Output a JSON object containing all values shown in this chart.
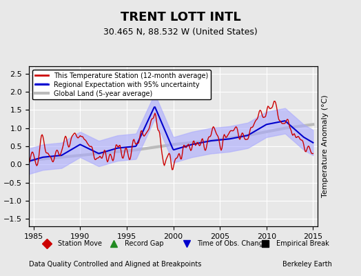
{
  "title": "TRENT LOTT INTL",
  "subtitle": "30.465 N, 88.532 W (United States)",
  "ylabel": "Temperature Anomaly (°C)",
  "xlabel_left": "Data Quality Controlled and Aligned at Breakpoints",
  "xlabel_right": "Berkeley Earth",
  "xlim": [
    1984.5,
    2015.5
  ],
  "ylim": [
    -1.7,
    2.7
  ],
  "yticks": [
    -1.5,
    -1.0,
    -0.5,
    0.0,
    0.5,
    1.0,
    1.5,
    2.0,
    2.5
  ],
  "xticks": [
    1985,
    1990,
    1995,
    2000,
    2005,
    2010,
    2015
  ],
  "bg_color": "#e8e8e8",
  "plot_bg_color": "#e8e8e8",
  "grid_color": "#ffffff",
  "station_color": "#cc0000",
  "regional_color": "#0000cc",
  "regional_fill_color": "#aaaaff",
  "global_color": "#bbbbbb",
  "legend_items": [
    {
      "label": "This Temperature Station (12-month average)",
      "color": "#cc0000",
      "lw": 2
    },
    {
      "label": "Regional Expectation with 95% uncertainty",
      "color": "#0000cc",
      "lw": 2
    },
    {
      "label": "Global Land (5-year average)",
      "color": "#bbbbbb",
      "lw": 3
    }
  ],
  "marker_legend": [
    {
      "label": "Station Move",
      "color": "#cc0000",
      "marker": "D"
    },
    {
      "label": "Record Gap",
      "color": "#228B22",
      "marker": "^"
    },
    {
      "label": "Time of Obs. Change",
      "color": "#0000cc",
      "marker": "v"
    },
    {
      "label": "Empirical Break",
      "color": "#000000",
      "marker": "s"
    }
  ]
}
